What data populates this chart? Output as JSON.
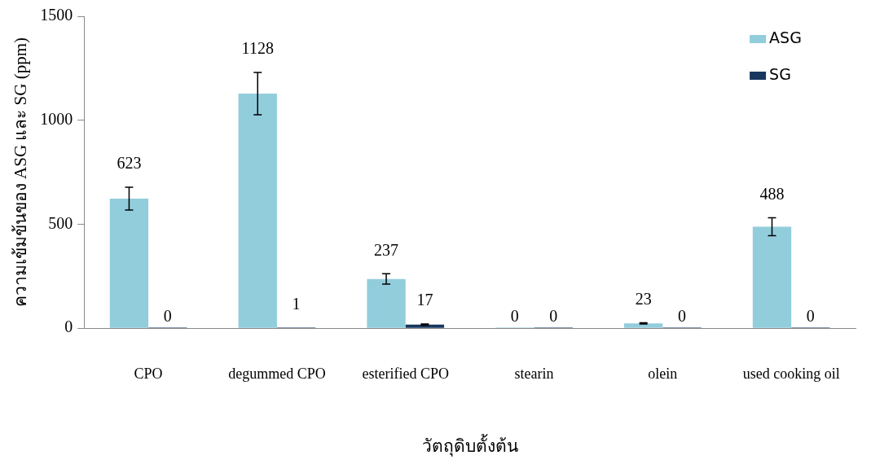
{
  "chart_data": {
    "type": "bar",
    "xlabel": "วัตถุดิบตั้งต้น",
    "ylabel": "ความเข้มข้นของ ASG และ SG (ppm)",
    "categories": [
      "CPO",
      "degummed CPO",
      "esterified CPO",
      "stearin",
      "olein",
      "used cooking oil"
    ],
    "series": [
      {
        "name": "ASG",
        "color": "#92cddc",
        "values": [
          623,
          1128,
          237,
          0,
          23,
          488
        ],
        "errors": [
          55,
          102,
          25,
          null,
          3,
          43
        ]
      },
      {
        "name": "SG",
        "color": "#17375e",
        "values": [
          0,
          1,
          17,
          0,
          0,
          0
        ],
        "errors": [
          null,
          null,
          3,
          null,
          null,
          null
        ]
      }
    ],
    "ylim": [
      0,
      1500
    ],
    "yticks": [
      0,
      500,
      1000,
      1500
    ],
    "grid": false,
    "legend": "top right",
    "data_labels": true
  }
}
